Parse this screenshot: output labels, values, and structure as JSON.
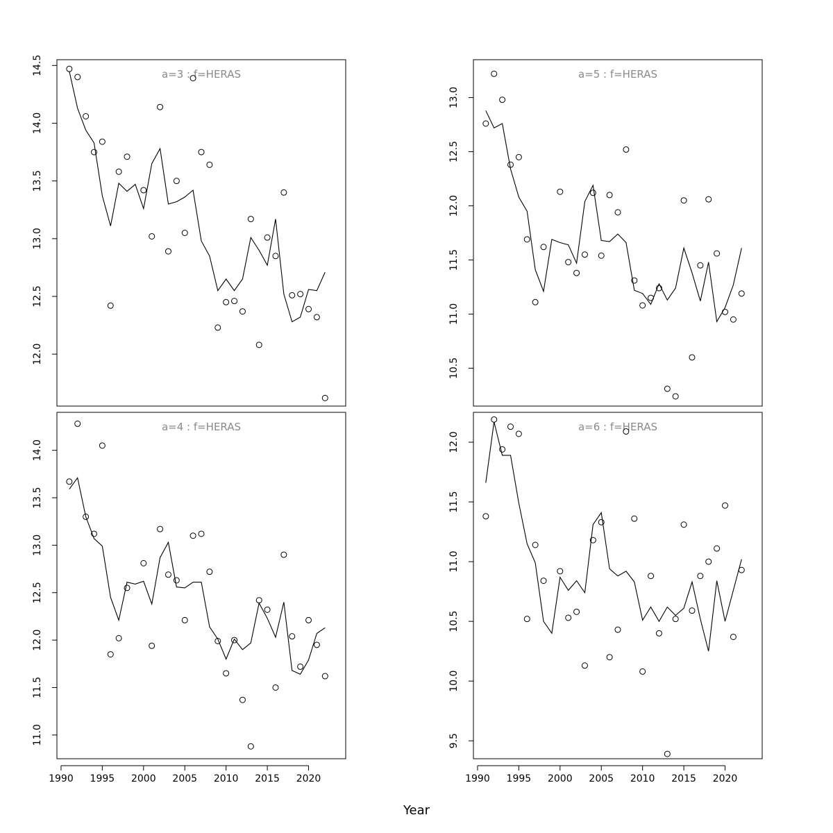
{
  "chart_data": {
    "xlabel": "Year",
    "xlim": [
      1989.5,
      2024.5
    ],
    "x_ticks": [
      1990,
      1995,
      2000,
      2005,
      2010,
      2015,
      2020
    ],
    "years": [
      1991,
      1992,
      1993,
      1994,
      1995,
      1996,
      1997,
      1998,
      1999,
      2000,
      2001,
      2002,
      2003,
      2004,
      2005,
      2006,
      2007,
      2008,
      2009,
      2010,
      2011,
      2012,
      2013,
      2014,
      2015,
      2016,
      2017,
      2018,
      2019,
      2020,
      2021,
      2022
    ],
    "panels": [
      {
        "type": "scatter+line",
        "title": "a=3  :  f=HERAS",
        "ylim": [
          11.55,
          14.55
        ],
        "y_ticks": [
          12.0,
          12.5,
          13.0,
          13.5,
          14.0,
          14.5
        ],
        "x_axis_ticks_shown": false,
        "observed": [
          14.47,
          14.4,
          14.06,
          13.75,
          13.84,
          12.42,
          13.58,
          13.71,
          null,
          13.42,
          13.02,
          14.14,
          12.89,
          13.5,
          13.05,
          14.39,
          13.75,
          13.64,
          12.23,
          12.45,
          12.46,
          12.37,
          13.17,
          12.08,
          13.01,
          12.85,
          13.4,
          12.51,
          12.52,
          12.39,
          12.32,
          11.62
        ],
        "fitted": [
          14.45,
          14.13,
          13.94,
          13.83,
          13.37,
          13.11,
          13.48,
          13.41,
          13.47,
          13.26,
          13.65,
          13.78,
          13.3,
          13.32,
          13.36,
          13.42,
          12.98,
          12.85,
          12.55,
          12.65,
          12.55,
          12.65,
          13.01,
          12.9,
          12.77,
          13.17,
          12.52,
          12.28,
          12.32,
          12.56,
          12.55,
          12.71
        ]
      },
      {
        "type": "scatter+line",
        "title": "a=5  :  f=HERAS",
        "ylim": [
          10.15,
          13.35
        ],
        "y_ticks": [
          10.5,
          11.0,
          11.5,
          12.0,
          12.5,
          13.0
        ],
        "x_axis_ticks_shown": false,
        "observed": [
          12.76,
          13.22,
          12.98,
          12.38,
          12.45,
          11.69,
          11.11,
          11.62,
          null,
          12.13,
          11.48,
          11.38,
          11.55,
          12.12,
          11.54,
          12.1,
          11.94,
          12.52,
          11.31,
          11.08,
          11.15,
          11.24,
          10.31,
          10.24,
          12.05,
          10.6,
          11.45,
          12.06,
          11.56,
          11.02,
          10.95,
          11.19
        ],
        "fitted": [
          12.88,
          12.72,
          12.76,
          12.34,
          12.08,
          11.95,
          11.41,
          11.21,
          11.69,
          11.66,
          11.64,
          11.47,
          12.04,
          12.19,
          11.68,
          11.67,
          11.74,
          11.66,
          11.22,
          11.19,
          11.09,
          11.28,
          11.13,
          11.24,
          11.61,
          11.38,
          11.12,
          11.48,
          10.93,
          11.06,
          11.27,
          11.61
        ]
      },
      {
        "type": "scatter+line",
        "title": "a=4  :  f=HERAS",
        "ylim": [
          10.75,
          14.4
        ],
        "y_ticks": [
          11.0,
          11.5,
          12.0,
          12.5,
          13.0,
          13.5,
          14.0
        ],
        "x_axis_ticks_shown": true,
        "observed": [
          13.67,
          14.28,
          13.3,
          13.12,
          14.05,
          11.85,
          12.02,
          12.55,
          null,
          12.81,
          11.94,
          13.17,
          12.69,
          12.63,
          12.21,
          13.1,
          13.12,
          12.72,
          11.99,
          11.65,
          12.0,
          11.37,
          10.88,
          12.42,
          12.32,
          11.5,
          12.9,
          12.04,
          11.72,
          12.21,
          11.95,
          11.62
        ],
        "fitted": [
          13.59,
          13.71,
          13.3,
          13.07,
          12.99,
          12.45,
          12.21,
          12.61,
          12.59,
          12.62,
          12.38,
          12.87,
          13.03,
          12.56,
          12.55,
          12.61,
          12.61,
          12.14,
          12.01,
          11.8,
          12.01,
          11.9,
          11.97,
          12.39,
          12.23,
          12.03,
          12.4,
          11.68,
          11.64,
          11.79,
          12.07,
          12.13
        ]
      },
      {
        "type": "scatter+line",
        "title": "a=6  :  f=HERAS",
        "ylim": [
          9.35,
          12.25
        ],
        "y_ticks": [
          9.5,
          10.0,
          10.5,
          11.0,
          11.5,
          12.0
        ],
        "x_axis_ticks_shown": true,
        "observed": [
          11.38,
          12.19,
          11.94,
          12.13,
          12.07,
          10.52,
          11.14,
          10.84,
          null,
          10.92,
          10.53,
          10.58,
          10.13,
          11.18,
          11.33,
          10.2,
          10.43,
          12.09,
          11.36,
          10.08,
          10.88,
          10.4,
          9.39,
          10.52,
          11.31,
          10.59,
          10.88,
          11.0,
          11.11,
          11.47,
          10.37,
          10.93
        ],
        "fitted": [
          11.66,
          12.17,
          11.89,
          11.89,
          11.49,
          11.15,
          10.99,
          10.5,
          10.4,
          10.87,
          10.76,
          10.84,
          10.74,
          11.31,
          11.41,
          10.94,
          10.88,
          10.92,
          10.83,
          10.51,
          10.62,
          10.5,
          10.62,
          10.55,
          10.61,
          10.83,
          10.52,
          10.25,
          10.84,
          10.5,
          10.76,
          11.02
        ]
      }
    ]
  }
}
